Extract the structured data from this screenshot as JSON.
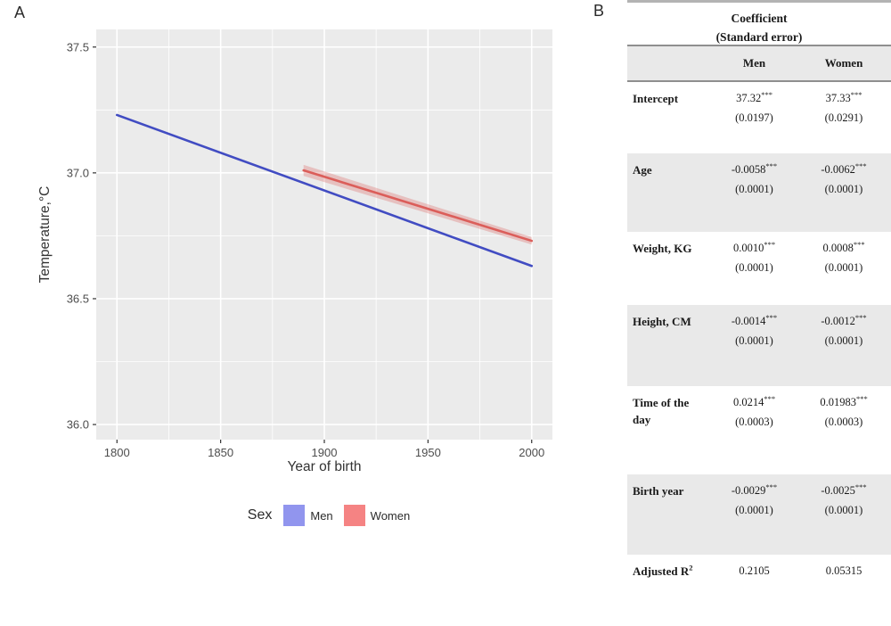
{
  "panel_a": {
    "label": "A"
  },
  "panel_b": {
    "label": "B",
    "table": {
      "title_line1": "Coefficient",
      "title_line2": "(Standard error)",
      "columns": [
        "Men",
        "Women"
      ],
      "rows": [
        {
          "label": "Intercept",
          "men": {
            "coef": "37.32",
            "stars": "***",
            "se": "(0.0197)"
          },
          "women": {
            "coef": "37.33",
            "stars": "***",
            "se": "(0.0291)"
          }
        },
        {
          "label": "Age",
          "men": {
            "coef": "-0.0058",
            "stars": "***",
            "se": "(0.0001)"
          },
          "women": {
            "coef": "-0.0062",
            "stars": "***",
            "se": "(0.0001)"
          }
        },
        {
          "label": "Weight, KG",
          "men": {
            "coef": "0.0010",
            "stars": "***",
            "se": "(0.0001)"
          },
          "women": {
            "coef": "0.0008",
            "stars": "***",
            "se": "(0.0001)"
          }
        },
        {
          "label": "Height, CM",
          "men": {
            "coef": "-0.0014",
            "stars": "***",
            "se": "(0.0001)"
          },
          "women": {
            "coef": "-0.0012",
            "stars": "***",
            "se": "(0.0001)"
          }
        },
        {
          "label": "Time of the day",
          "men": {
            "coef": "0.0214",
            "stars": "***",
            "se": "(0.0003)"
          },
          "women": {
            "coef": "0.01983",
            "stars": "***",
            "se": "(0.0003)"
          }
        },
        {
          "label": "Birth year",
          "men": {
            "coef": "-0.0029",
            "stars": "***",
            "se": "(0.0001)"
          },
          "women": {
            "coef": "-0.0025",
            "stars": "***",
            "se": "(0.0001)"
          }
        },
        {
          "label": "Adjusted R",
          "label_sup": "2",
          "men": {
            "coef": "0.2105",
            "stars": "",
            "se": ""
          },
          "women": {
            "coef": "0.05315",
            "stars": "",
            "se": ""
          }
        }
      ]
    }
  },
  "chart_data": {
    "type": "line",
    "title": "",
    "xlabel": "Year of birth",
    "ylabel": "Temperature,°C",
    "xlim": [
      1790,
      2010
    ],
    "ylim": [
      35.94,
      37.57
    ],
    "x_ticks": [
      1800,
      1850,
      1900,
      1950,
      2000
    ],
    "y_ticks": [
      36.0,
      36.5,
      37.0,
      37.5
    ],
    "x_minor_ticks": [
      1825,
      1875,
      1925,
      1975
    ],
    "y_minor_ticks": [
      36.25,
      36.75,
      37.25
    ],
    "grid": true,
    "panel_background": "#ebebeb",
    "grid_color": "#ffffff",
    "legend_title": "Sex",
    "legend_position": "bottom",
    "series": [
      {
        "name": "Men",
        "color": "#414cc2",
        "fill": "#9195ee",
        "x": [
          1800,
          2000
        ],
        "y": [
          37.23,
          36.63
        ]
      },
      {
        "name": "Women",
        "color": "#db5e5a",
        "fill": "#f58383",
        "x": [
          1890,
          2000
        ],
        "y": [
          37.01,
          36.73
        ],
        "band": {
          "upper": [
            37.032,
            36.745
          ],
          "lower": [
            36.988,
            36.715
          ]
        }
      }
    ]
  }
}
